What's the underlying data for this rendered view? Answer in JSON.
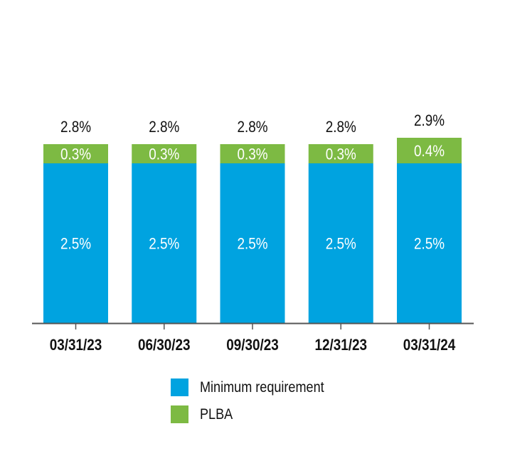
{
  "colors": {
    "minimum": "#00A3E0",
    "plba": "#7DBA43",
    "axis": "#555555",
    "text": "#111111",
    "inner_text": "#ffffff"
  },
  "chart_data": {
    "type": "bar",
    "stacked": true,
    "categories": [
      "03/31/23",
      "06/30/23",
      "09/30/23",
      "12/31/23",
      "03/31/24"
    ],
    "series": [
      {
        "name": "Minimum requirement",
        "values": [
          2.5,
          2.5,
          2.5,
          2.5,
          2.5
        ],
        "labels": [
          "2.5%",
          "2.5%",
          "2.5%",
          "2.5%",
          "2.5%"
        ],
        "color": "#00A3E0"
      },
      {
        "name": "PLBA",
        "values": [
          0.3,
          0.3,
          0.3,
          0.3,
          0.4
        ],
        "labels": [
          "0.3%",
          "0.3%",
          "0.3%",
          "0.3%",
          "0.4%"
        ],
        "color": "#7DBA43"
      }
    ],
    "totals": [
      2.8,
      2.8,
      2.8,
      2.8,
      2.9
    ],
    "total_labels": [
      "2.8%",
      "2.8%",
      "2.8%",
      "2.8%",
      "2.9%"
    ],
    "ylim": [
      0,
      4.5
    ],
    "grid": false,
    "legend_position": "bottom"
  },
  "legend": {
    "items": [
      {
        "label": "Minimum requirement"
      },
      {
        "label": "PLBA"
      }
    ]
  }
}
